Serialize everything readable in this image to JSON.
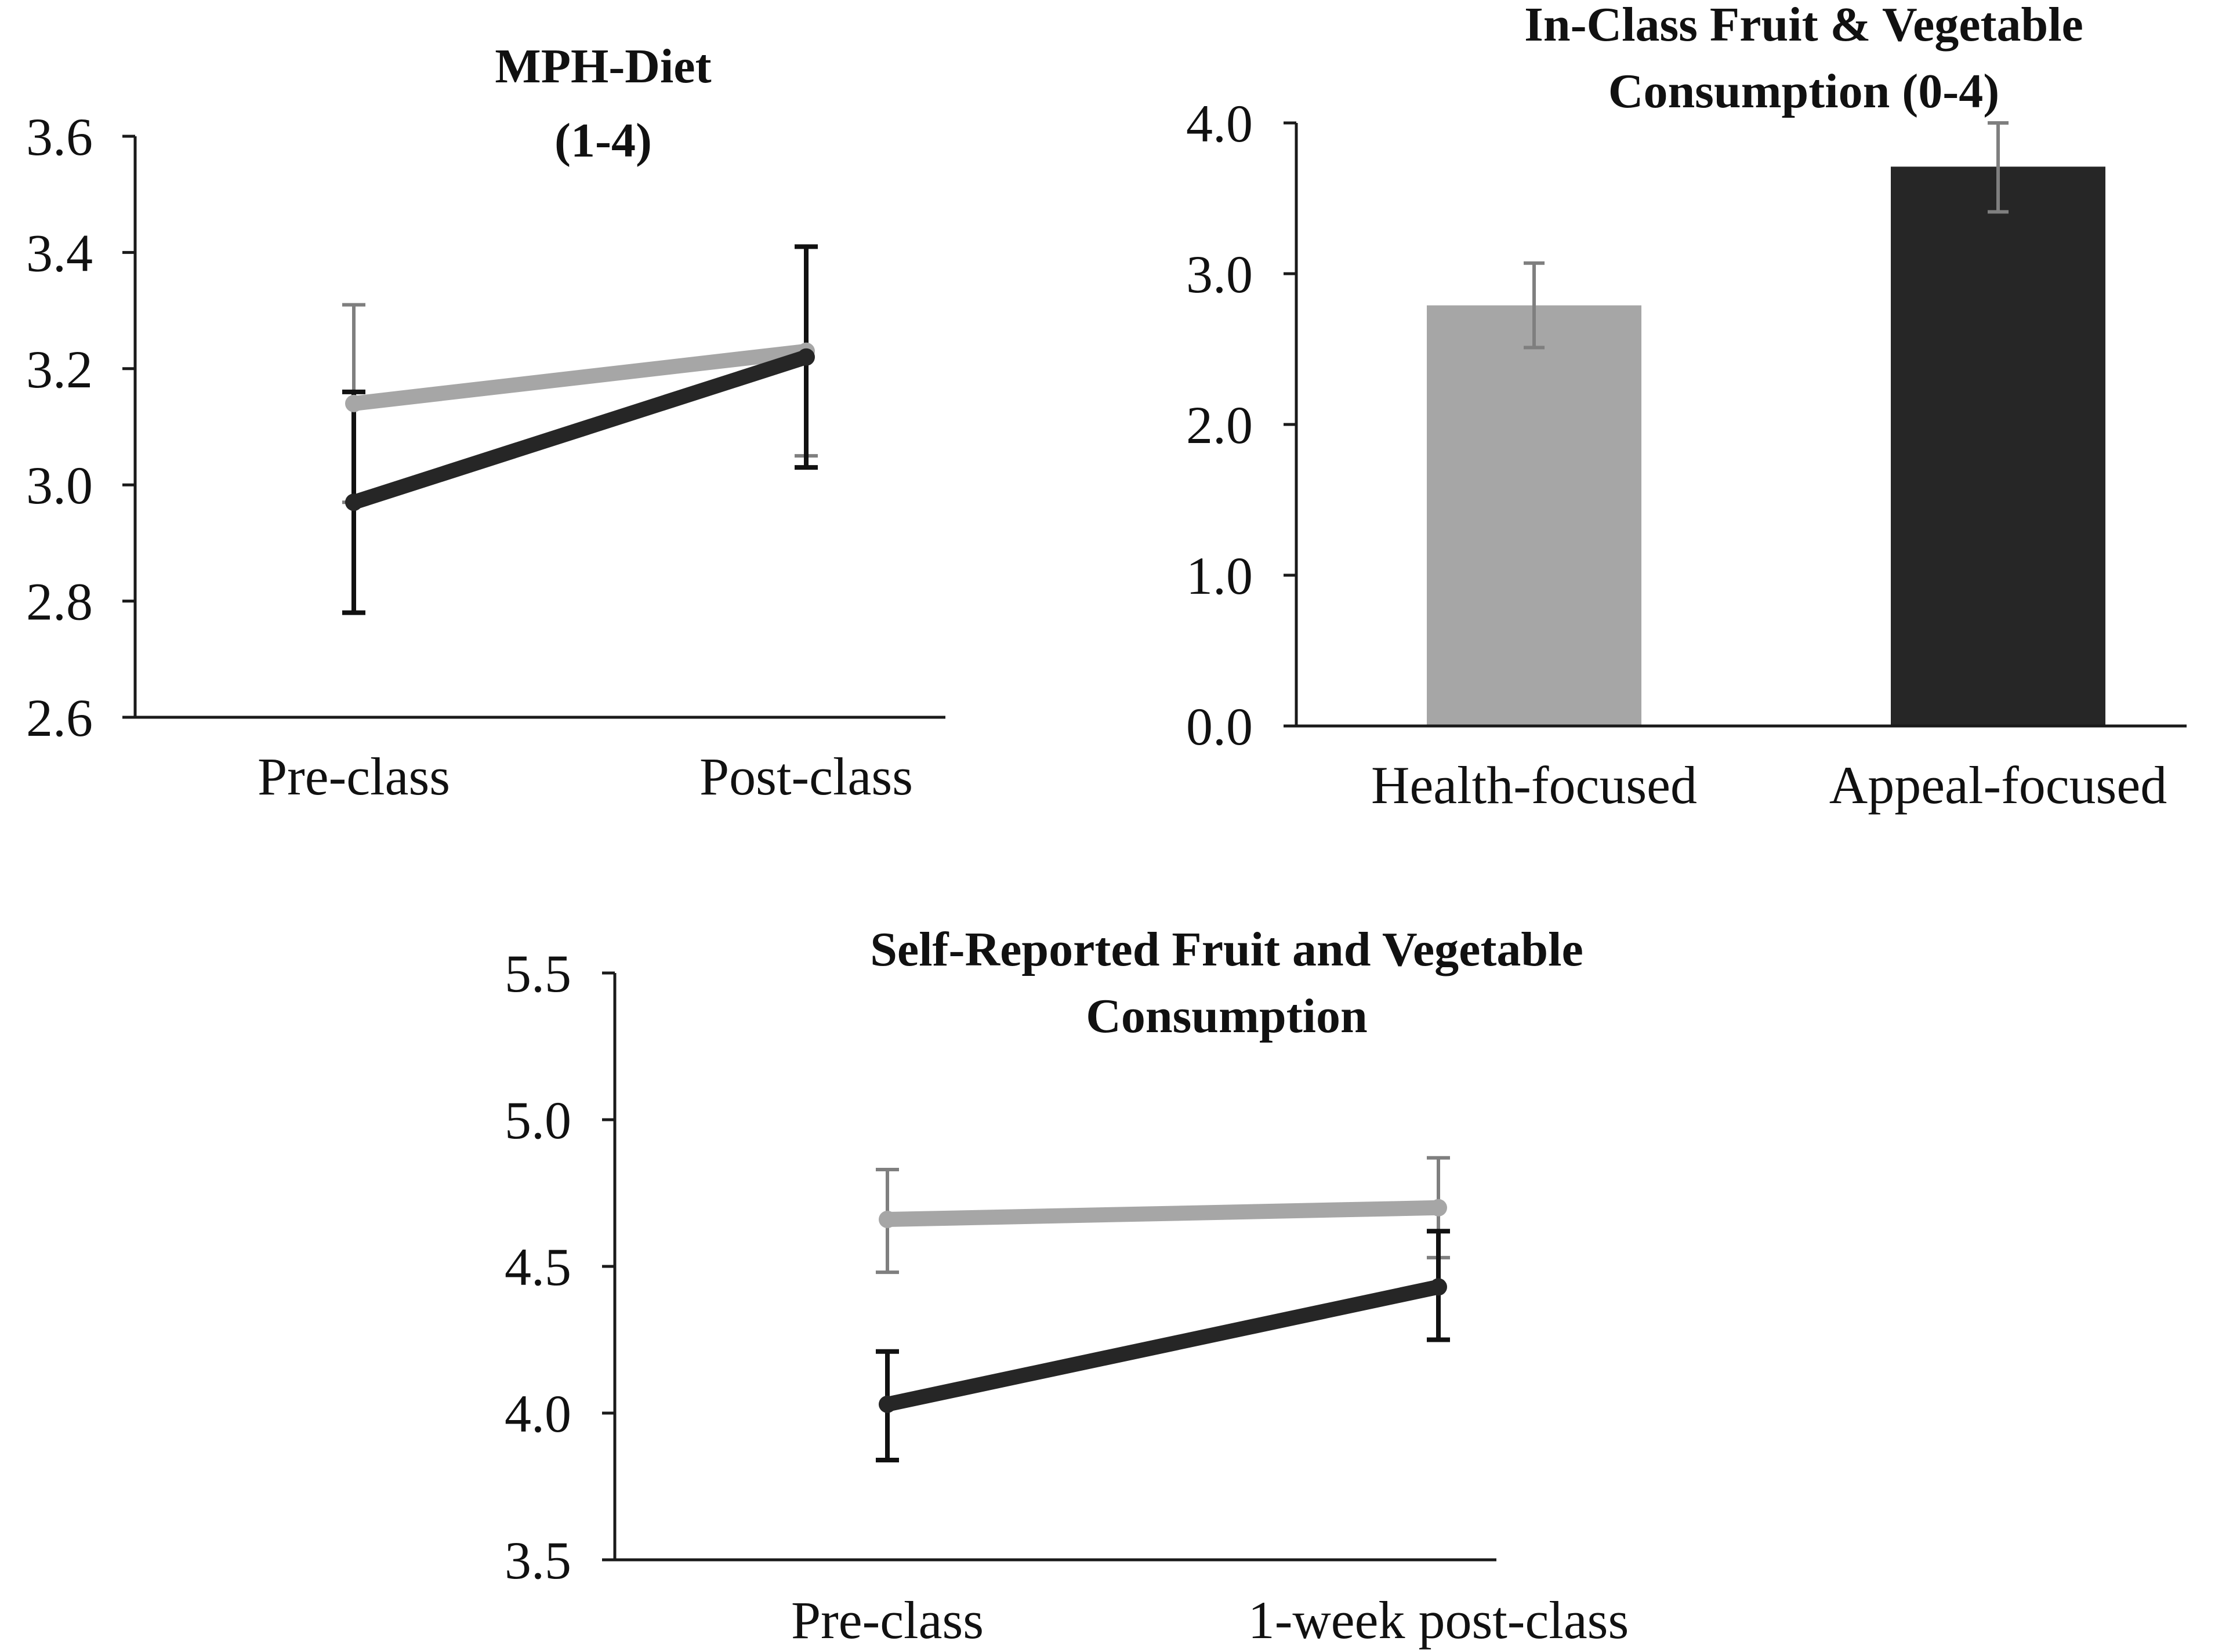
{
  "colors": {
    "health": "#a6a6a6",
    "appeal": "#262626",
    "health_error": "#7f7f7f",
    "appeal_error": "#111111",
    "axis": "#1a1a1a"
  },
  "chart_data": [
    {
      "id": "mph-diet",
      "type": "line",
      "title_lines": [
        "MPH-Diet",
        "(1-4)"
      ],
      "categories": [
        "Pre-class",
        "Post-class"
      ],
      "ylim": [
        2.6,
        3.6
      ],
      "yticks": [
        2.6,
        2.8,
        3.0,
        3.2,
        3.4,
        3.6
      ],
      "ytick_labels": [
        "2.6",
        "2.8",
        "3.0",
        "3.2",
        "3.4",
        "3.6"
      ],
      "series": [
        {
          "name": "Health-focused",
          "values": [
            3.14,
            3.23
          ],
          "err_low": [
            2.97,
            3.05
          ],
          "err_high": [
            3.31,
            3.41
          ]
        },
        {
          "name": "Appeal-focused",
          "values": [
            2.97,
            3.22
          ],
          "err_low": [
            2.78,
            3.03
          ],
          "err_high": [
            3.16,
            3.41
          ]
        }
      ]
    },
    {
      "id": "in-class-consumption",
      "type": "bar",
      "title_lines": [
        "In-Class Fruit & Vegetable",
        "Consumption (0-4)"
      ],
      "categories": [
        "Health-focused",
        "Appeal-focused"
      ],
      "ylim": [
        0.0,
        4.0
      ],
      "yticks": [
        0.0,
        1.0,
        2.0,
        3.0,
        4.0
      ],
      "ytick_labels": [
        "0.0",
        "1.0",
        "2.0",
        "3.0",
        "4.0"
      ],
      "values": [
        2.79,
        3.71
      ],
      "err_low": [
        2.51,
        3.41
      ],
      "err_high": [
        3.07,
        4.0
      ]
    },
    {
      "id": "self-reported-consumption",
      "type": "line",
      "title_lines": [
        "Self-Reported Fruit and Vegetable",
        "Consumption"
      ],
      "categories": [
        "Pre-class",
        "1-week post-class"
      ],
      "ylim": [
        3.5,
        5.5
      ],
      "yticks": [
        3.5,
        4.0,
        4.5,
        5.0,
        5.5
      ],
      "ytick_labels": [
        "3.5",
        "4.0",
        "4.5",
        "5.0",
        "5.5"
      ],
      "series": [
        {
          "name": "Health-focused",
          "values": [
            4.66,
            4.7
          ],
          "err_low": [
            4.48,
            4.53
          ],
          "err_high": [
            4.83,
            4.87
          ]
        },
        {
          "name": "Appeal-focused",
          "values": [
            4.03,
            4.43
          ],
          "err_low": [
            3.84,
            4.25
          ],
          "err_high": [
            4.21,
            4.62
          ]
        }
      ]
    }
  ]
}
